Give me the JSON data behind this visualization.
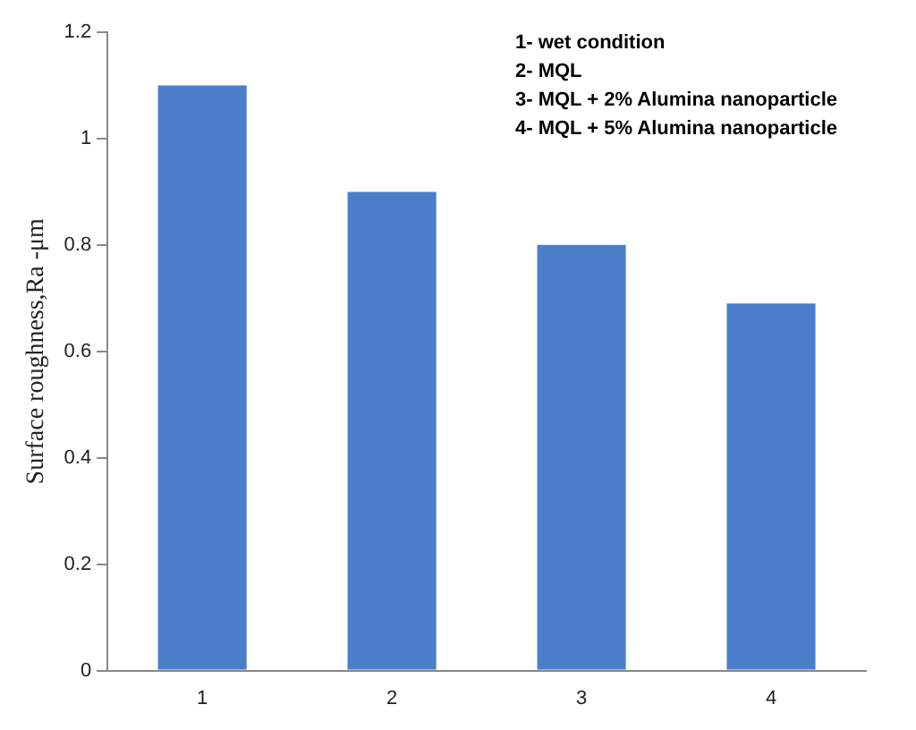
{
  "chart_data": {
    "type": "bar",
    "ylabel": "Surface roughness,Ra -μm",
    "categories": [
      "1",
      "2",
      "3",
      "4"
    ],
    "values": [
      1.1,
      0.9,
      0.8,
      0.69
    ],
    "color": "#4a7ec9",
    "ylim": [
      0,
      1.2
    ],
    "yticks": [
      0,
      0.2,
      0.4,
      0.6,
      0.8,
      1,
      1.2
    ],
    "grid": false,
    "legend": false,
    "annotations": [
      "1- wet condition",
      "2- MQL",
      "3- MQL + 2% Alumina nanoparticle",
      "4- MQL + 5% Alumina nanoparticle"
    ]
  }
}
